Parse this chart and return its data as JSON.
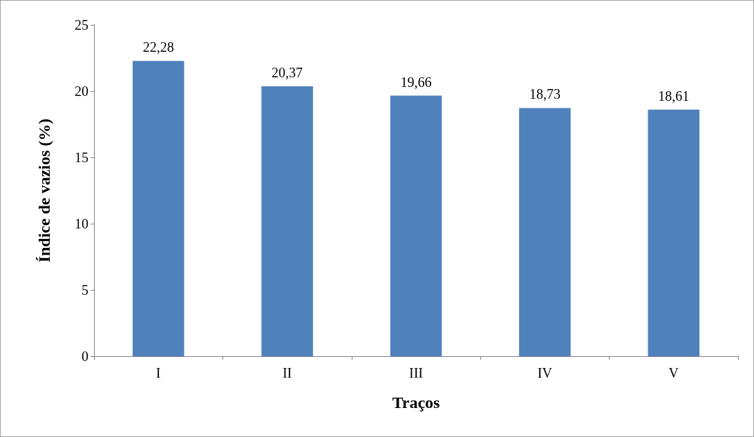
{
  "chart_data": {
    "type": "bar",
    "xlabel": "Traços",
    "ylabel": "Índice de vazios (%)",
    "categories": [
      "I",
      "II",
      "III",
      "IV",
      "V"
    ],
    "values": [
      22.28,
      20.37,
      19.66,
      18.73,
      18.61
    ],
    "value_labels": [
      "22,28",
      "20,37",
      "19,66",
      "18,73",
      "18,61"
    ],
    "color": "#4f81bd",
    "ylim": [
      0,
      25
    ],
    "yticks": [
      0,
      5,
      10,
      15,
      20,
      25
    ]
  }
}
